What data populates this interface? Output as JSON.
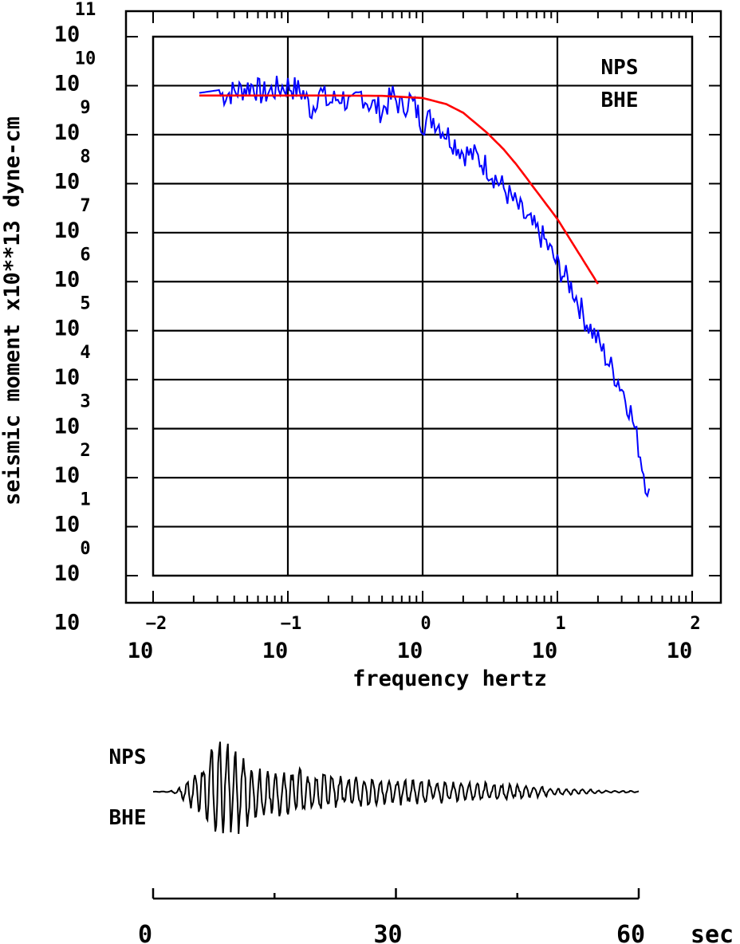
{
  "chart_data": [
    {
      "type": "line",
      "xscale": "log",
      "yscale": "log",
      "xlim": [
        0.01,
        100
      ],
      "ylim": [
        1,
        100000000000
      ],
      "xlabel": "frequency hertz",
      "ylabel": "seismic moment x10**13 dyne-cm",
      "grid": true,
      "annotation": [
        "NPS",
        "BHE"
      ],
      "x_tick_labels": [
        {
          "base": "10",
          "exp": "−2"
        },
        {
          "base": "10",
          "exp": "−1"
        },
        {
          "base": "10",
          "exp": "0"
        },
        {
          "base": "10",
          "exp": "1"
        },
        {
          "base": "10",
          "exp": "2"
        }
      ],
      "y_tick_labels": [
        {
          "base": "10",
          "exp": "11"
        },
        {
          "base": "10",
          "exp": "10"
        },
        {
          "base": "10",
          "exp": "9"
        },
        {
          "base": "10",
          "exp": "8"
        },
        {
          "base": "10",
          "exp": "7"
        },
        {
          "base": "10",
          "exp": "6"
        },
        {
          "base": "10",
          "exp": "5"
        },
        {
          "base": "10",
          "exp": "4"
        },
        {
          "base": "10",
          "exp": "3"
        },
        {
          "base": "10",
          "exp": "2"
        },
        {
          "base": "10",
          "exp": "1"
        },
        {
          "base": "10",
          "exp": "0"
        },
        {
          "base": "10",
          "exp": ""
        }
      ],
      "series": [
        {
          "color": "#0000ff",
          "x": [
            0.022,
            0.03,
            0.04,
            0.055,
            0.065,
            0.08,
            0.1,
            0.13,
            0.15,
            0.17,
            0.2,
            0.25,
            0.3,
            0.35,
            0.4,
            0.5,
            0.6,
            0.7,
            0.8,
            0.9,
            1.0,
            1.2,
            1.5,
            2.0,
            2.5,
            3.0,
            4.0,
            5.0,
            6.0,
            8.0,
            10.0,
            13.0,
            16.0,
            20.0,
            25.0,
            30.0,
            35.0,
            40.0,
            45.0,
            48.0
          ],
          "y": [
            6200000000,
            7000000000,
            8500000000,
            11500000000,
            7500000000,
            9500000000,
            11500000000,
            8000000000,
            3500000000,
            9000000000,
            5000000000,
            7000000000,
            4000000000,
            8000000000,
            5000000000,
            3500000000,
            7000000000,
            4000000000,
            6000000000,
            3500000000,
            2000000000,
            2500000000,
            1200000000,
            500000000,
            400000000,
            250000000,
            90000000,
            40000000,
            20000000,
            8000000,
            2500000,
            800000,
            200000,
            70000,
            20000,
            8000,
            2500,
            500,
            100,
            60
          ]
        },
        {
          "color": "#ff0000",
          "x": [
            0.022,
            0.05,
            0.1,
            0.2,
            0.5,
            1.0,
            1.5,
            2.0,
            3.0,
            4.0,
            5.0,
            7.0,
            10.0,
            15.0,
            20.0
          ],
          "y": [
            6300000000,
            6300000000,
            6300000000,
            6300000000,
            6200000000,
            5600000000,
            4200000000,
            2800000000,
            1100000000,
            500000000,
            240000000,
            70000000,
            19000000,
            3200000,
            900000
          ]
        }
      ]
    },
    {
      "type": "line",
      "annotation": [
        "NPS",
        "BHE"
      ],
      "xlim": [
        0,
        60
      ],
      "x_tick_labels": [
        "0",
        "30",
        "60"
      ],
      "x_unit": "sec",
      "series": [
        {
          "color": "#000000",
          "x": [
            0,
            2,
            3,
            4,
            5,
            6,
            7,
            8,
            9,
            10,
            11,
            12,
            14,
            16,
            18,
            20,
            22,
            25,
            28,
            32,
            36,
            40,
            44,
            48,
            52,
            56,
            60
          ],
          "y": [
            0,
            0.01,
            0.05,
            0.2,
            0.3,
            0.4,
            0.6,
            1.0,
            0.9,
            0.7,
            0.65,
            0.55,
            0.45,
            0.4,
            0.35,
            0.3,
            0.3,
            0.25,
            0.22,
            0.2,
            0.18,
            0.15,
            0.12,
            0.08,
            0.05,
            0.02,
            0.01
          ]
        }
      ]
    }
  ]
}
